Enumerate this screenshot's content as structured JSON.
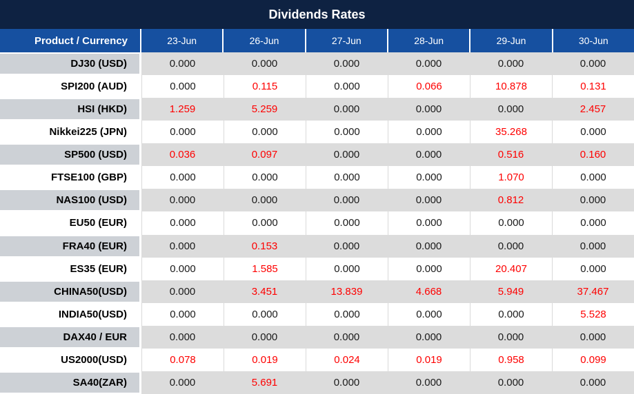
{
  "title": "Dividends Rates",
  "colors": {
    "title_bg": "#0e2242",
    "header_bg": "#1650a0",
    "gray_row_label_bg": "#cdd1d6",
    "gray_row_cell_bg": "#dcdcdc",
    "grid_line": "#d9d9d9",
    "zero_value_text": "#1a1a1a",
    "nonzero_value_text": "#fe0000"
  },
  "table": {
    "corner_header": "Product / Currency",
    "date_headers": [
      "23-Jun",
      "26-Jun",
      "27-Jun",
      "28-Jun",
      "29-Jun",
      "30-Jun"
    ],
    "rows": [
      {
        "product": "DJ30 (USD)",
        "values": [
          "0.000",
          "0.000",
          "0.000",
          "0.000",
          "0.000",
          "0.000"
        ]
      },
      {
        "product": "SPI200 (AUD)",
        "values": [
          "0.000",
          "0.115",
          "0.000",
          "0.066",
          "10.878",
          "0.131"
        ]
      },
      {
        "product": "HSI (HKD)",
        "values": [
          "1.259",
          "5.259",
          "0.000",
          "0.000",
          "0.000",
          "2.457"
        ]
      },
      {
        "product": "Nikkei225 (JPN)",
        "values": [
          "0.000",
          "0.000",
          "0.000",
          "0.000",
          "35.268",
          "0.000"
        ]
      },
      {
        "product": "SP500 (USD)",
        "values": [
          "0.036",
          "0.097",
          "0.000",
          "0.000",
          "0.516",
          "0.160"
        ]
      },
      {
        "product": "FTSE100 (GBP)",
        "values": [
          "0.000",
          "0.000",
          "0.000",
          "0.000",
          "1.070",
          "0.000"
        ]
      },
      {
        "product": "NAS100 (USD)",
        "values": [
          "0.000",
          "0.000",
          "0.000",
          "0.000",
          "0.812",
          "0.000"
        ]
      },
      {
        "product": "EU50 (EUR)",
        "values": [
          "0.000",
          "0.000",
          "0.000",
          "0.000",
          "0.000",
          "0.000"
        ]
      },
      {
        "product": "FRA40 (EUR)",
        "values": [
          "0.000",
          "0.153",
          "0.000",
          "0.000",
          "0.000",
          "0.000"
        ]
      },
      {
        "product": "ES35 (EUR)",
        "values": [
          "0.000",
          "1.585",
          "0.000",
          "0.000",
          "20.407",
          "0.000"
        ]
      },
      {
        "product": "CHINA50(USD)",
        "values": [
          "0.000",
          "3.451",
          "13.839",
          "4.668",
          "5.949",
          "37.467"
        ]
      },
      {
        "product": "INDIA50(USD)",
        "values": [
          "0.000",
          "0.000",
          "0.000",
          "0.000",
          "0.000",
          "5.528"
        ]
      },
      {
        "product": "DAX40 / EUR",
        "values": [
          "0.000",
          "0.000",
          "0.000",
          "0.000",
          "0.000",
          "0.000"
        ]
      },
      {
        "product": "US2000(USD)",
        "values": [
          "0.078",
          "0.019",
          "0.024",
          "0.019",
          "0.958",
          "0.099"
        ]
      },
      {
        "product": "SA40(ZAR)",
        "values": [
          "0.000",
          "5.691",
          "0.000",
          "0.000",
          "0.000",
          "0.000"
        ]
      }
    ]
  }
}
